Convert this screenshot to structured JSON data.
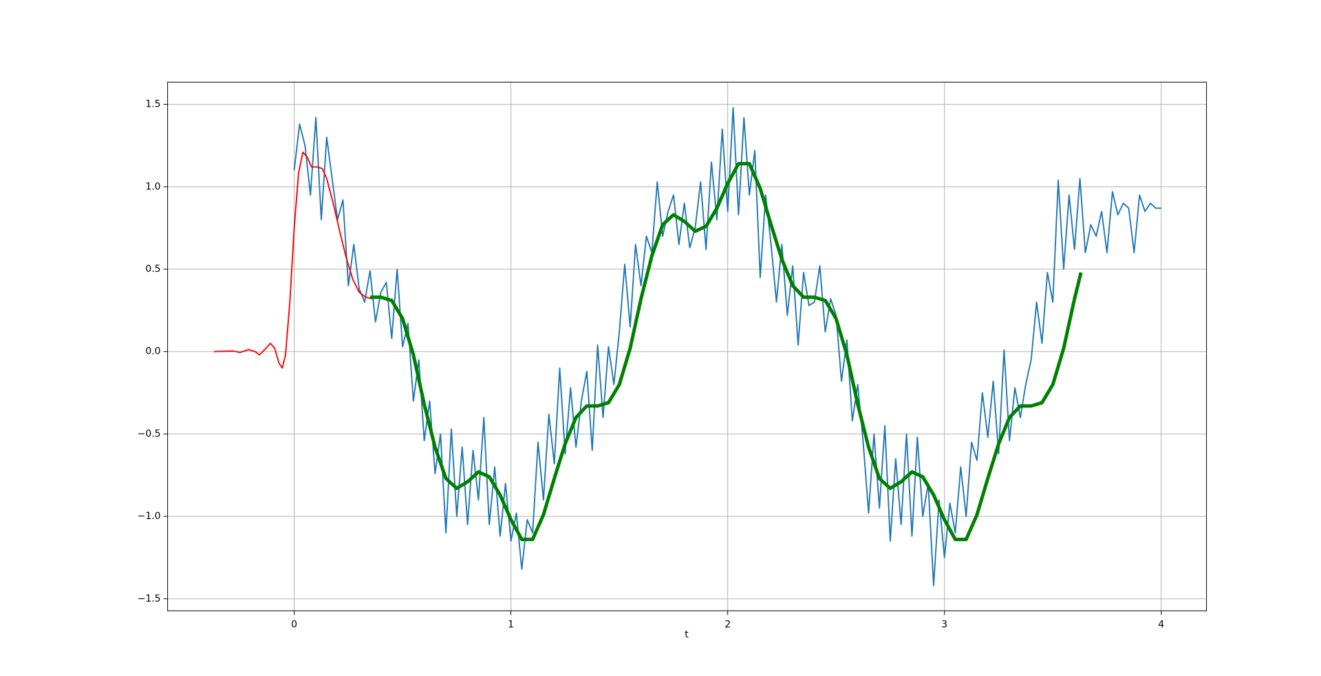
{
  "chart_data": {
    "type": "line",
    "xlabel": "t",
    "xlim": [
      -0.584,
      4.209
    ],
    "ylim": [
      -1.573,
      1.635
    ],
    "xticks": [
      0,
      1,
      2,
      3,
      4
    ],
    "yticks": [
      {
        "value": -1.5,
        "label": "−1.5"
      },
      {
        "value": -1.0,
        "label": "−1.0"
      },
      {
        "value": -0.5,
        "label": "−0.5"
      },
      {
        "value": 0,
        "label": "0.0"
      },
      {
        "value": 0.5,
        "label": "0.5"
      },
      {
        "value": 1.0,
        "label": "1.0"
      },
      {
        "value": 1.5,
        "label": "1.5"
      }
    ],
    "grid": true,
    "series": [
      {
        "color": "#1f77b4",
        "width": 1.9,
        "x": [
          0,
          0.025,
          0.05,
          0.075,
          0.1,
          0.125,
          0.15,
          0.175,
          0.2,
          0.225,
          0.25,
          0.275,
          0.3,
          0.325,
          0.35,
          0.375,
          0.4,
          0.425,
          0.45,
          0.475,
          0.5,
          0.525,
          0.55,
          0.575,
          0.6,
          0.625,
          0.65,
          0.675,
          0.7,
          0.725,
          0.75,
          0.775,
          0.8,
          0.825,
          0.85,
          0.875,
          0.9,
          0.925,
          0.95,
          0.975,
          1,
          1.025,
          1.05,
          1.075,
          1.1,
          1.125,
          1.15,
          1.175,
          1.2,
          1.225,
          1.25,
          1.275,
          1.3,
          1.325,
          1.35,
          1.375,
          1.4,
          1.425,
          1.45,
          1.475,
          1.5,
          1.525,
          1.55,
          1.575,
          1.6,
          1.625,
          1.65,
          1.675,
          1.7,
          1.725,
          1.75,
          1.775,
          1.8,
          1.825,
          1.85,
          1.875,
          1.9,
          1.925,
          1.95,
          1.975,
          2,
          2.025,
          2.05,
          2.075,
          2.1,
          2.125,
          2.15,
          2.175,
          2.2,
          2.225,
          2.25,
          2.275,
          2.3,
          2.325,
          2.35,
          2.375,
          2.4,
          2.425,
          2.45,
          2.475,
          2.5,
          2.525,
          2.55,
          2.575,
          2.6,
          2.625,
          2.65,
          2.675,
          2.7,
          2.725,
          2.75,
          2.775,
          2.8,
          2.825,
          2.85,
          2.875,
          2.9,
          2.925,
          2.95,
          2.975,
          3,
          3.025,
          3.05,
          3.075,
          3.1,
          3.125,
          3.15,
          3.175,
          3.2,
          3.225,
          3.25,
          3.275,
          3.3,
          3.325,
          3.35,
          3.375,
          3.4,
          3.425,
          3.45,
          3.475,
          3.5,
          3.525,
          3.55,
          3.575,
          3.6,
          3.625,
          3.65,
          3.675,
          3.7,
          3.725,
          3.75,
          3.775,
          3.8,
          3.825,
          3.85,
          3.875,
          3.9,
          3.925,
          3.95,
          3.975,
          4
        ],
        "values": [
          1.1,
          1.38,
          1.25,
          0.95,
          1.42,
          0.8,
          1.3,
          1.05,
          0.8,
          0.92,
          0.4,
          0.65,
          0.38,
          0.3,
          0.49,
          0.18,
          0.36,
          0.42,
          0.08,
          0.5,
          0.03,
          0.17,
          -0.3,
          -0.05,
          -0.54,
          -0.3,
          -0.74,
          -0.5,
          -1.1,
          -0.47,
          -1.0,
          -0.58,
          -1.05,
          -0.6,
          -0.9,
          -0.4,
          -1.05,
          -0.7,
          -1.12,
          -0.8,
          -1.15,
          -0.98,
          -1.32,
          -1.02,
          -1.1,
          -0.55,
          -0.9,
          -0.38,
          -0.68,
          -0.1,
          -0.62,
          -0.22,
          -0.58,
          -0.3,
          -0.12,
          -0.6,
          0.04,
          -0.4,
          0.03,
          -0.2,
          0.12,
          0.53,
          0.15,
          0.65,
          0.4,
          0.7,
          0.6,
          1.03,
          0.7,
          0.85,
          0.95,
          0.65,
          0.9,
          0.63,
          0.75,
          1.03,
          0.62,
          1.15,
          0.8,
          1.35,
          0.85,
          1.48,
          0.83,
          1.42,
          0.95,
          1.22,
          0.45,
          0.95,
          0.65,
          0.3,
          0.65,
          0.22,
          0.52,
          0.04,
          0.48,
          0.28,
          0.3,
          0.52,
          0.12,
          0.32,
          0.22,
          -0.18,
          0.07,
          -0.42,
          -0.2,
          -0.55,
          -0.98,
          -0.5,
          -0.95,
          -0.45,
          -1.15,
          -0.65,
          -1.05,
          -0.5,
          -1.12,
          -0.52,
          -1.0,
          -0.8,
          -1.42,
          -0.9,
          -1.25,
          -0.92,
          -1.1,
          -0.7,
          -1.0,
          -0.55,
          -0.66,
          -0.25,
          -0.52,
          -0.18,
          -0.62,
          0.01,
          -0.54,
          -0.22,
          -0.4,
          -0.2,
          -0.05,
          0.3,
          0.05,
          0.48,
          0.3,
          1.04,
          0.5,
          0.95,
          0.62,
          1.05,
          0.6,
          0.77,
          0.7,
          0.85,
          0.6,
          0.97,
          0.83,
          0.9,
          0.87,
          0.6,
          0.95,
          0.85,
          0.9,
          0.87,
          0.87
        ]
      },
      {
        "color": "#ff0000",
        "width": 1.9,
        "x": [
          -0.37,
          -0.32,
          -0.28,
          -0.25,
          -0.21,
          -0.18,
          -0.16,
          -0.13,
          -0.11,
          -0.09,
          -0.07,
          -0.055,
          -0.04,
          -0.02,
          0,
          0.02,
          0.04,
          0.06,
          0.08,
          0.11,
          0.13,
          0.15,
          0.18,
          0.21,
          0.24,
          0.27,
          0.3,
          0.33,
          0.36
        ],
        "values": [
          0,
          0.002,
          0.003,
          -0.005,
          0.012,
          0,
          -0.02,
          0.02,
          0.05,
          0.02,
          -0.07,
          -0.1,
          -0.02,
          0.3,
          0.75,
          1.08,
          1.21,
          1.18,
          1.12,
          1.12,
          1.11,
          1.05,
          0.9,
          0.73,
          0.57,
          0.44,
          0.36,
          0.33,
          0.32
        ]
      },
      {
        "color": "#008000",
        "width": 5,
        "x": [
          0.35,
          0.4,
          0.45,
          0.5,
          0.55,
          0.6,
          0.65,
          0.7,
          0.75,
          0.8,
          0.85,
          0.9,
          0.95,
          1,
          1.05,
          1.1,
          1.15,
          1.2,
          1.25,
          1.3,
          1.35,
          1.4,
          1.45,
          1.5,
          1.55,
          1.6,
          1.65,
          1.7,
          1.75,
          1.8,
          1.85,
          1.9,
          1.95,
          2,
          2.05,
          2.1,
          2.15,
          2.2,
          2.25,
          2.3,
          2.35,
          2.4,
          2.45,
          2.5,
          2.55,
          2.6,
          2.65,
          2.7,
          2.75,
          2.8,
          2.85,
          2.9,
          2.95,
          3,
          3.05,
          3.1,
          3.15,
          3.2,
          3.25,
          3.3,
          3.35,
          3.4,
          3.45,
          3.5,
          3.55,
          3.6,
          3.63
        ],
        "values": [
          0.33,
          0.33,
          0.31,
          0.2,
          -0.02,
          -0.32,
          -0.58,
          -0.77,
          -0.83,
          -0.79,
          -0.73,
          -0.76,
          -0.87,
          -1.02,
          -1.14,
          -1.14,
          -0.99,
          -0.77,
          -0.56,
          -0.4,
          -0.33,
          -0.33,
          -0.31,
          -0.2,
          0.02,
          0.32,
          0.58,
          0.77,
          0.83,
          0.79,
          0.73,
          0.76,
          0.87,
          1.02,
          1.14,
          1.14,
          0.99,
          0.77,
          0.56,
          0.4,
          0.33,
          0.33,
          0.31,
          0.2,
          -0.02,
          -0.32,
          -0.58,
          -0.77,
          -0.83,
          -0.79,
          -0.73,
          -0.76,
          -0.87,
          -1.02,
          -1.14,
          -1.14,
          -0.99,
          -0.77,
          -0.56,
          -0.4,
          -0.33,
          -0.33,
          -0.31,
          -0.2,
          0.02,
          0.32,
          0.48
        ]
      }
    ]
  }
}
